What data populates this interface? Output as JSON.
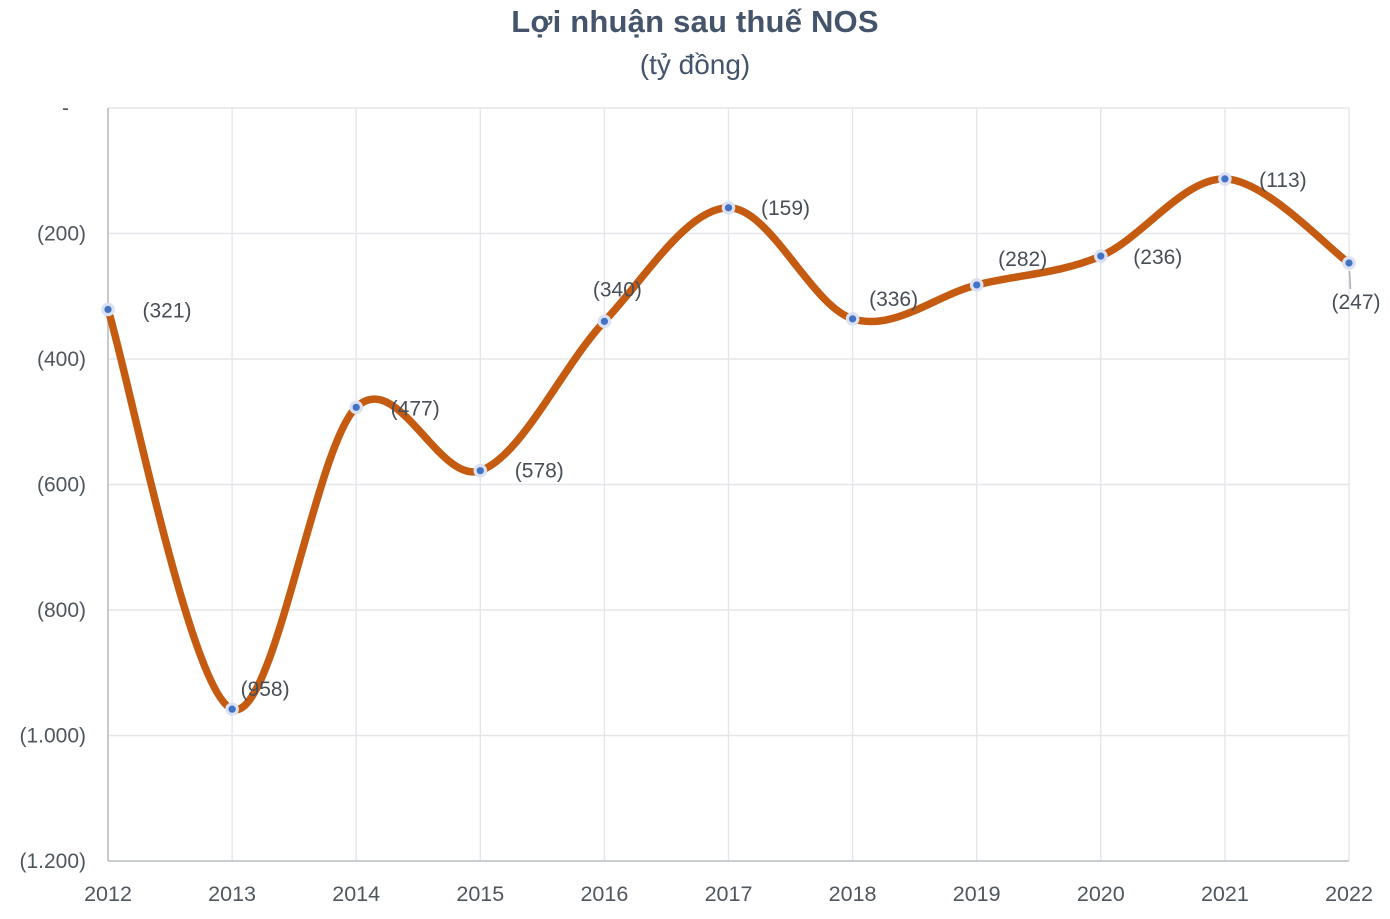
{
  "chart_data": {
    "type": "line",
    "title": "Lợi nhuận sau thuế NOS",
    "subtitle": "(tỷ đồng)",
    "xlabel": "",
    "ylabel": "",
    "ylim": [
      -1200,
      0
    ],
    "grid": true,
    "legend": "none",
    "smooth_line": true,
    "marker_style": "circle",
    "categories": [
      "2012",
      "2013",
      "2014",
      "2015",
      "2016",
      "2017",
      "2018",
      "2019",
      "2020",
      "2021",
      "2022"
    ],
    "series": [
      {
        "name": "Lợi nhuận sau thuế NOS",
        "values": [
          -321,
          -958,
          -477,
          -578,
          -340,
          -159,
          -336,
          -282,
          -236,
          -113,
          -247
        ],
        "point_labels": [
          "(321)",
          "(958)",
          "(477)",
          "(578)",
          "(340)",
          "(159)",
          "(336)",
          "(282)",
          "(236)",
          "(113)",
          "(247)"
        ]
      }
    ],
    "y_ticks": [
      {
        "value": 0,
        "label": "-"
      },
      {
        "value": -200,
        "label": "(200)"
      },
      {
        "value": -400,
        "label": "(400)"
      },
      {
        "value": -600,
        "label": "(600)"
      },
      {
        "value": -800,
        "label": "(800)"
      },
      {
        "value": -1000,
        "label": "(1.000)"
      },
      {
        "value": -1200,
        "label": "(1.200)"
      }
    ],
    "colors": {
      "line": "#C55A11",
      "marker": "#4472C4",
      "marker_halo": "#D9E1F2",
      "grid": "#E4E6E9",
      "axis": "#B7BDC2",
      "title": "#44546A",
      "axis_text": "#4F565E",
      "data_label_text": "#474E57",
      "leader_line": "#A9AFB8",
      "background": "#FFFFFF"
    }
  }
}
